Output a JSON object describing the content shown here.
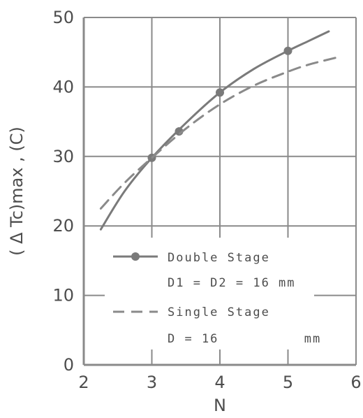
{
  "chart_data": {
    "type": "line",
    "xlabel": "N",
    "ylabel": "( Δ Tc)max , (C)",
    "xlim": [
      2,
      6
    ],
    "ylim": [
      0,
      50
    ],
    "x_ticks": [
      "2",
      "3",
      "4",
      "5",
      "6"
    ],
    "y_ticks": [
      "0",
      "10",
      "20",
      "30",
      "40",
      "50"
    ],
    "grid": true,
    "legend_position": "lower-center",
    "series": [
      {
        "legend_lines": [
          "Double Stage",
          "D1 = D2 = 16 mm"
        ],
        "style": "solid-with-markers",
        "color": "#7a7a7a",
        "points": [
          {
            "x": 2.25,
            "y": 19.5
          },
          {
            "x": 2.6,
            "y": 25.0
          },
          {
            "x": 3.0,
            "y": 29.8
          },
          {
            "x": 3.5,
            "y": 34.8
          },
          {
            "x": 4.0,
            "y": 39.2
          },
          {
            "x": 4.5,
            "y": 42.6
          },
          {
            "x": 5.0,
            "y": 45.2
          },
          {
            "x": 5.3,
            "y": 46.6
          },
          {
            "x": 5.6,
            "y": 48.0
          }
        ],
        "markers": [
          {
            "x": 3.0,
            "y": 29.8
          },
          {
            "x": 3.4,
            "y": 33.6
          },
          {
            "x": 4.0,
            "y": 39.2
          },
          {
            "x": 5.0,
            "y": 45.2
          }
        ]
      },
      {
        "legend_lines": [
          "Single Stage",
          "D = 16          mm"
        ],
        "style": "dashed",
        "color": "#8a8a8a",
        "points": [
          {
            "x": 2.25,
            "y": 22.5
          },
          {
            "x": 2.6,
            "y": 26.2
          },
          {
            "x": 3.0,
            "y": 29.8
          },
          {
            "x": 3.5,
            "y": 34.0
          },
          {
            "x": 4.0,
            "y": 37.5
          },
          {
            "x": 4.5,
            "y": 40.2
          },
          {
            "x": 5.0,
            "y": 42.2
          },
          {
            "x": 5.3,
            "y": 43.2
          },
          {
            "x": 5.7,
            "y": 44.2
          }
        ]
      }
    ]
  }
}
